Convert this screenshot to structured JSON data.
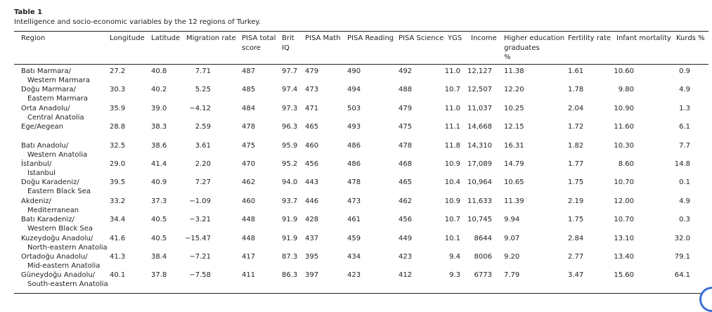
{
  "table": {
    "label": "Table 1",
    "caption": "Intelligence and socio-economic variables by the 12 regions of Turkey.",
    "headers": [
      [
        "Region"
      ],
      [
        "Longitude"
      ],
      [
        "Latitude"
      ],
      [
        "Migration rate"
      ],
      [
        "PISA total",
        "score"
      ],
      [
        "Brit",
        "IQ"
      ],
      [
        "PISA Math"
      ],
      [
        "PISA Reading"
      ],
      [
        "PISA Science"
      ],
      [
        "YGS"
      ],
      [
        "Income"
      ],
      [
        "Higher education",
        "graduates",
        "%"
      ],
      [
        "Fertility rate"
      ],
      [
        "Infant mortality"
      ],
      [
        "Kurds %"
      ]
    ],
    "rows": [
      [
        [
          "Batı Marmara/",
          "Western Marmara"
        ],
        "27.2",
        "40.8",
        "7.71",
        "487",
        "97.7",
        "479",
        "490",
        "492",
        "11.0",
        "12,127",
        "11.38",
        "1.61",
        "10.60",
        "0.9"
      ],
      [
        [
          "Doğu Marmara/",
          "Eastern Marmara"
        ],
        "30.3",
        "40.2",
        "5.25",
        "485",
        "97.4",
        "473",
        "494",
        "488",
        "10.7",
        "12,507",
        "12.20",
        "1.78",
        "9.80",
        "4.9"
      ],
      [
        [
          "Orta Anadolu/",
          "Central Anatolia"
        ],
        "35.9",
        "39.0",
        "−4.12",
        "484",
        "97.3",
        "471",
        "503",
        "479",
        "11.0",
        "11,037",
        "10.25",
        "2.04",
        "10.90",
        "1.3"
      ],
      [
        [
          "Ege/Aegean"
        ],
        "28.8",
        "38.3",
        "2.59",
        "478",
        "96.3",
        "465",
        "493",
        "475",
        "11.1",
        "14,668",
        "12.15",
        "1.72",
        "11.60",
        "6.1"
      ],
      [
        [
          "Batı Anadolu/",
          "Western Anatolia"
        ],
        "32.5",
        "38.6",
        "3.61",
        "475",
        "95.9",
        "460",
        "486",
        "478",
        "11.8",
        "14,310",
        "16.31",
        "1.82",
        "10.30",
        "7.7"
      ],
      [
        [
          "İstanbul/",
          "Istanbul"
        ],
        "29.0",
        "41.4",
        "2.20",
        "470",
        "95.2",
        "456",
        "486",
        "468",
        "10.9",
        "17,089",
        "14.79",
        "1.77",
        "8.60",
        "14.8"
      ],
      [
        [
          "Doğu Karadeniz/",
          "Eastern Black Sea"
        ],
        "39.5",
        "40.9",
        "7.27",
        "462",
        "94.0",
        "443",
        "478",
        "465",
        "10.4",
        "10,964",
        "10.65",
        "1.75",
        "10.70",
        "0.1"
      ],
      [
        [
          "Akdeniz/",
          "Mediterranean"
        ],
        "33.2",
        "37.3",
        "−1.09",
        "460",
        "93.7",
        "446",
        "473",
        "462",
        "10.9",
        "11,633",
        "11.39",
        "2.19",
        "12.00",
        "4.9"
      ],
      [
        [
          "Batı Karadeniz/",
          "Western Black Sea"
        ],
        "34.4",
        "40.5",
        "−3.21",
        "448",
        "91.9",
        "428",
        "461",
        "456",
        "10.7",
        "10,745",
        "9.94",
        "1.75",
        "10.70",
        "0.3"
      ],
      [
        [
          "Kuzeydoğu Anadolu/",
          "North-eastern Anatolia"
        ],
        "41.6",
        "40.5",
        "−15.47",
        "448",
        "91.9",
        "437",
        "459",
        "449",
        "10.1",
        "8644",
        "9.07",
        "2.84",
        "13.10",
        "32.0"
      ],
      [
        [
          "Ortadoğu Anadolu/",
          "Mid-eastern Anatolia"
        ],
        "41.3",
        "38.4",
        "−7.21",
        "417",
        "87.3",
        "395",
        "434",
        "423",
        "9.4",
        "8006",
        "9.20",
        "2.77",
        "13.40",
        "79.1"
      ],
      [
        [
          "Güneydoğu Anadolu/",
          "South-eastern Anatolia"
        ],
        "40.1",
        "37.8",
        "−7.58",
        "411",
        "86.3",
        "397",
        "423",
        "412",
        "9.3",
        "6773",
        "7.79",
        "3.47",
        "15.60",
        "64.1"
      ]
    ]
  }
}
